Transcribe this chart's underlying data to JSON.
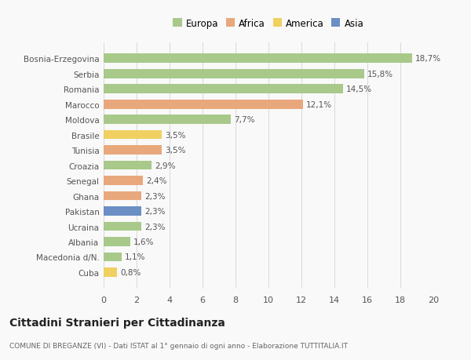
{
  "categories": [
    "Bosnia-Erzegovina",
    "Serbia",
    "Romania",
    "Marocco",
    "Moldova",
    "Brasile",
    "Tunisia",
    "Croazia",
    "Senegal",
    "Ghana",
    "Pakistan",
    "Ucraina",
    "Albania",
    "Macedonia d/N.",
    "Cuba"
  ],
  "values": [
    18.7,
    15.8,
    14.5,
    12.1,
    7.7,
    3.5,
    3.5,
    2.9,
    2.4,
    2.3,
    2.3,
    2.3,
    1.6,
    1.1,
    0.8
  ],
  "labels": [
    "18,7%",
    "15,8%",
    "14,5%",
    "12,1%",
    "7,7%",
    "3,5%",
    "3,5%",
    "2,9%",
    "2,4%",
    "2,3%",
    "2,3%",
    "2,3%",
    "1,6%",
    "1,1%",
    "0,8%"
  ],
  "continents": [
    "Europa",
    "Europa",
    "Europa",
    "Africa",
    "Europa",
    "America",
    "Africa",
    "Europa",
    "Africa",
    "Africa",
    "Asia",
    "Europa",
    "Europa",
    "Europa",
    "America"
  ],
  "colors": {
    "Europa": "#a8c98a",
    "Africa": "#e8a87c",
    "America": "#f0d060",
    "Asia": "#6b8fc4"
  },
  "xlim": [
    0,
    20
  ],
  "xticks": [
    0,
    2,
    4,
    6,
    8,
    10,
    12,
    14,
    16,
    18,
    20
  ],
  "title": "Cittadini Stranieri per Cittadinanza",
  "subtitle": "COMUNE DI BREGANZE (VI) - Dati ISTAT al 1° gennaio di ogni anno - Elaborazione TUTTITALIA.IT",
  "background_color": "#f9f9f9",
  "bar_height": 0.6,
  "grid_color": "#d8d8d8",
  "legend_order": [
    "Europa",
    "Africa",
    "America",
    "Asia"
  ]
}
